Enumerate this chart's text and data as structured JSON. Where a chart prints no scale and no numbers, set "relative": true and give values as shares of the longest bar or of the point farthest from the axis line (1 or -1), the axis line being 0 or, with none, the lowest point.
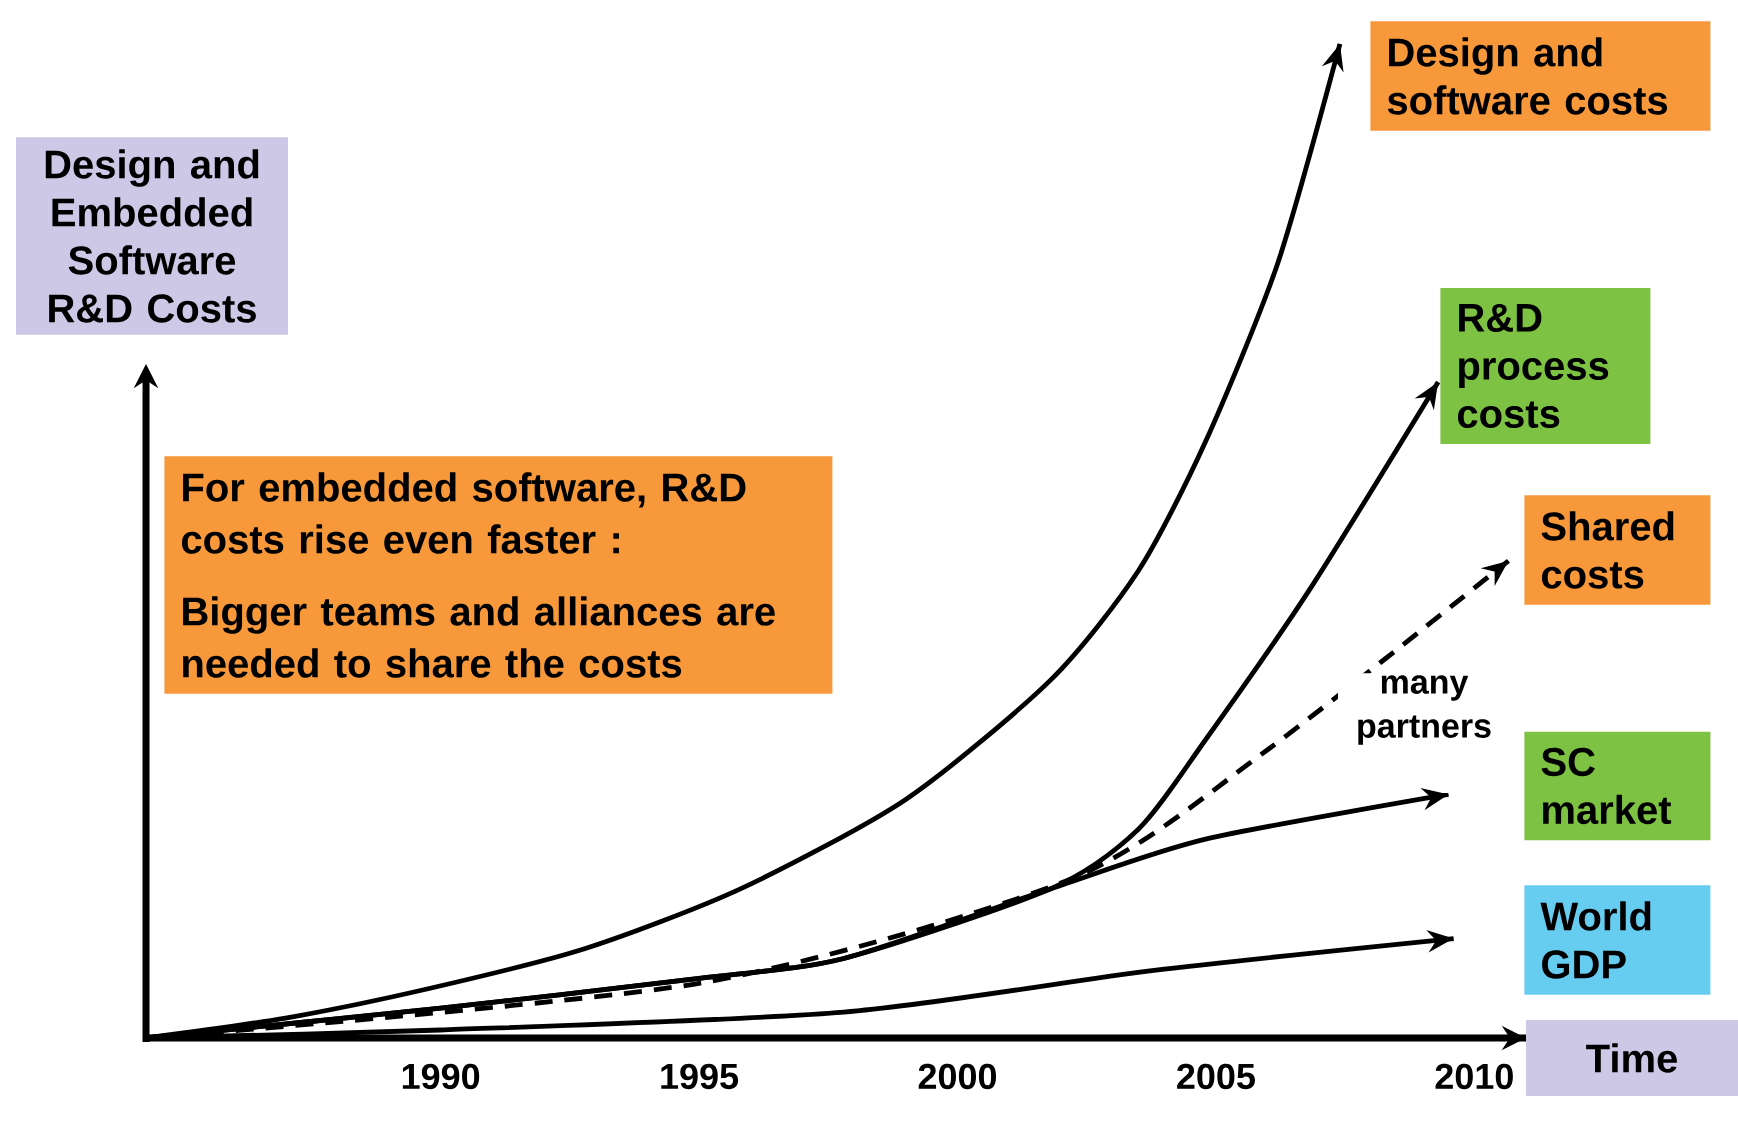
{
  "chart_data": {
    "type": "line",
    "relative": true,
    "xlabel": "Time",
    "legend": "right",
    "ylabel": "Design and Embedded Software R&D Costs",
    "xlim": [
      1984.3,
      2011
    ],
    "xticks": [
      1990,
      1995,
      2000,
      2005,
      2010
    ],
    "annotations": [
      "For embedded software, R&D costs rise even faster :",
      "Bigger teams and alliances are needed to share the costs",
      "many partners"
    ],
    "series": [
      {
        "name": "Design and software costs",
        "color": "#000000",
        "x": [
          1984.3,
          1987,
          1989.8,
          1992.8,
          1995.8,
          1999,
          2001.8,
          2003.5,
          2004.8,
          2006.2,
          2007.4
        ],
        "values": [
          0,
          0.02,
          0.05,
          0.09,
          0.15,
          0.24,
          0.36,
          0.47,
          0.6,
          0.78,
          1
        ]
      },
      {
        "name": "R&D process costs",
        "color": "#000000",
        "x": [
          1984.3,
          1990,
          1995,
          1997.8,
          2001.8,
          2003.5,
          2004.8,
          2006.8,
          2009.3
        ],
        "values": [
          0,
          0.03,
          0.06,
          0.08,
          0.15,
          0.21,
          0.3,
          0.45,
          0.66
        ]
      },
      {
        "name": "Shared costs",
        "color": "#000000",
        "line_style": "dashed",
        "x": [
          1984.3,
          1995,
          2002.2,
          2006,
          2010.66
        ],
        "values": [
          0,
          0.055,
          0.16,
          0.29,
          0.48
        ]
      },
      {
        "name": "SC market",
        "color": "#000000",
        "x": [
          1984.3,
          1990,
          1995,
          1997.8,
          2001.8,
          2004.8,
          2009.5
        ],
        "values": [
          0,
          0.03,
          0.06,
          0.08,
          0.15,
          0.2,
          0.245
        ]
      },
      {
        "name": "World GDP",
        "color": "#000000",
        "x": [
          1984.3,
          1990,
          1997.8,
          2003.8,
          2009.6
        ],
        "values": [
          0,
          0.008,
          0.026,
          0.068,
          0.1
        ]
      }
    ]
  }
}
